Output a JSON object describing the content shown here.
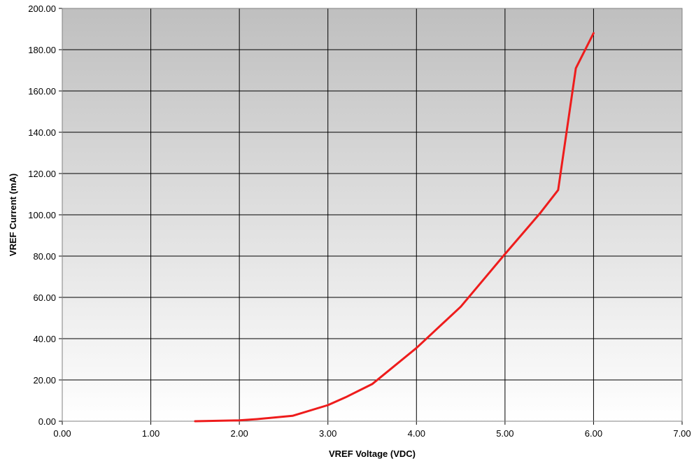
{
  "chart_data": {
    "type": "line",
    "title": "",
    "xlabel": "VREF Voltage (VDC)",
    "ylabel": "VREF Current (mA)",
    "xlim": [
      0,
      7
    ],
    "ylim": [
      0,
      200
    ],
    "x_ticks": [
      "0.00",
      "1.00",
      "2.00",
      "3.00",
      "4.00",
      "5.00",
      "6.00",
      "7.00"
    ],
    "y_ticks": [
      "0.00",
      "20.00",
      "40.00",
      "60.00",
      "80.00",
      "100.00",
      "120.00",
      "140.00",
      "160.00",
      "180.00",
      "200.00"
    ],
    "grid": true,
    "legend": "none",
    "series": [
      {
        "color": "#ee1c1c",
        "x": [
          1.5,
          2.0,
          2.2,
          2.6,
          3.0,
          3.2,
          3.5,
          3.7,
          4.0,
          4.2,
          4.5,
          5.0,
          5.4,
          5.6,
          5.8,
          6.0
        ],
        "y": [
          0.0,
          0.4,
          1.0,
          2.6,
          7.8,
          11.6,
          18.0,
          25.0,
          35.5,
          43.5,
          55.5,
          81.0,
          101.0,
          112.0,
          171.0,
          188.0
        ]
      }
    ],
    "colors": {
      "background_top": "#bfbfbf",
      "background_bottom": "#ffffff",
      "grid": "#000000",
      "line": "#ee1c1c"
    }
  }
}
